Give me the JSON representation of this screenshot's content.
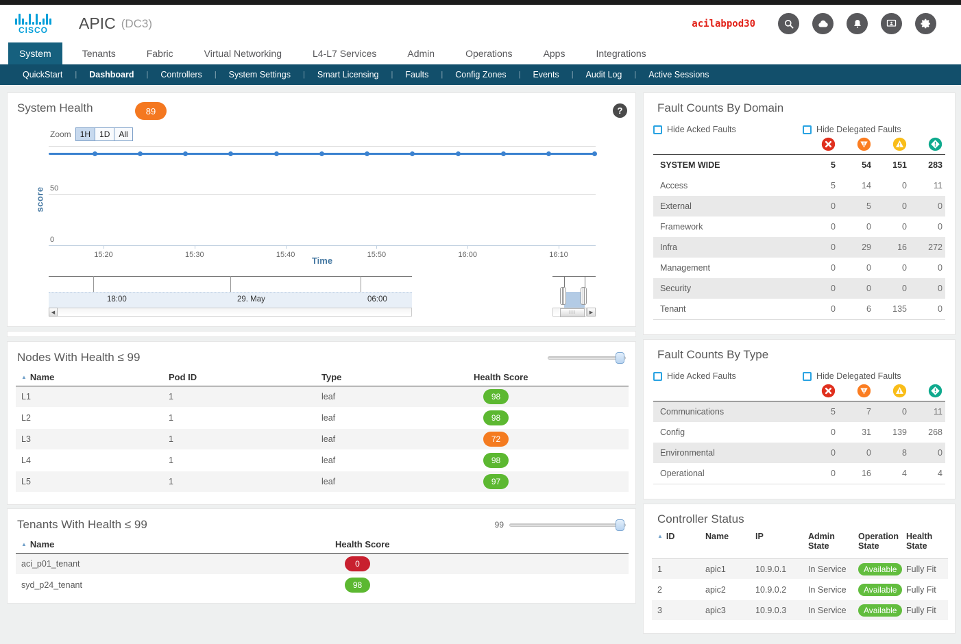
{
  "header": {
    "brand": "CISCO",
    "app_title": "APIC",
    "fabric_name": "(DC3)",
    "username": "acilabpod30",
    "icons": [
      "search-icon",
      "cloud-icon",
      "bell-icon",
      "session-icon",
      "gear-icon"
    ]
  },
  "nav": {
    "tabs": [
      {
        "label": "System",
        "active": true
      },
      {
        "label": "Tenants"
      },
      {
        "label": "Fabric"
      },
      {
        "label": "Virtual Networking"
      },
      {
        "label": "L4-L7 Services"
      },
      {
        "label": "Admin"
      },
      {
        "label": "Operations"
      },
      {
        "label": "Apps"
      },
      {
        "label": "Integrations"
      }
    ],
    "subnav": [
      {
        "label": "QuickStart"
      },
      {
        "label": "Dashboard",
        "active": true
      },
      {
        "label": "Controllers"
      },
      {
        "label": "System Settings"
      },
      {
        "label": "Smart Licensing"
      },
      {
        "label": "Faults"
      },
      {
        "label": "Config Zones"
      },
      {
        "label": "Events"
      },
      {
        "label": "Audit Log"
      },
      {
        "label": "Active Sessions"
      }
    ]
  },
  "system_health": {
    "title": "System Health",
    "score_badge": "89",
    "help_icon": "question-icon",
    "zoom_label": "Zoom",
    "zoom_buttons": [
      {
        "label": "1H",
        "active": true
      },
      {
        "label": "1D"
      },
      {
        "label": "All"
      }
    ],
    "chart_data": {
      "type": "line",
      "title": "System Health",
      "xlabel": "Time",
      "ylabel": "score",
      "ylim": [
        0,
        100
      ],
      "yticks": [
        0,
        50
      ],
      "xticks": [
        "15:20",
        "15:30",
        "15:40",
        "15:50",
        "16:00",
        "16:10"
      ],
      "series": [
        {
          "name": "score",
          "color": "#3b82d0",
          "values": [
            89,
            89,
            89,
            89,
            89,
            89,
            89,
            89,
            89,
            89,
            89,
            89
          ]
        }
      ],
      "legend": "off",
      "navigator": {
        "labels": [
          "18:00",
          "29. May",
          "06:00"
        ]
      }
    }
  },
  "fault_domain": {
    "title": "Fault Counts By Domain",
    "hide_acked_label": "Hide Acked Faults",
    "hide_delegated_label": "Hide Delegated Faults",
    "severity_icons": [
      "critical-icon",
      "major-icon",
      "minor-icon",
      "warning-icon"
    ],
    "rows": [
      {
        "label": "SYSTEM WIDE",
        "bold": true,
        "values": [
          5,
          54,
          151,
          283
        ]
      },
      {
        "label": "Access",
        "values": [
          5,
          14,
          0,
          11
        ]
      },
      {
        "label": "External",
        "shaded": true,
        "values": [
          0,
          5,
          0,
          0
        ]
      },
      {
        "label": "Framework",
        "values": [
          0,
          0,
          0,
          0
        ]
      },
      {
        "label": "Infra",
        "shaded": true,
        "values": [
          0,
          29,
          16,
          272
        ]
      },
      {
        "label": "Management",
        "values": [
          0,
          0,
          0,
          0
        ]
      },
      {
        "label": "Security",
        "shaded": true,
        "values": [
          0,
          0,
          0,
          0
        ]
      },
      {
        "label": "Tenant",
        "values": [
          0,
          6,
          135,
          0
        ]
      }
    ]
  },
  "fault_type": {
    "title": "Fault Counts By Type",
    "hide_acked_label": "Hide Acked Faults",
    "hide_delegated_label": "Hide Delegated Faults",
    "severity_icons": [
      "critical-icon",
      "major-icon",
      "minor-icon",
      "warning-icon"
    ],
    "rows": [
      {
        "label": "Communications",
        "shaded": true,
        "values": [
          5,
          7,
          0,
          11
        ]
      },
      {
        "label": "Config",
        "values": [
          0,
          31,
          139,
          268
        ]
      },
      {
        "label": "Environmental",
        "shaded": true,
        "values": [
          0,
          0,
          8,
          0
        ]
      },
      {
        "label": "Operational",
        "values": [
          0,
          16,
          4,
          4
        ]
      }
    ]
  },
  "nodes": {
    "title": "Nodes With Health ≤ 99",
    "columns": [
      "Name",
      "Pod ID",
      "Type",
      "Health Score"
    ],
    "rows": [
      {
        "name": "L1",
        "pod_id": "1",
        "type": "leaf",
        "health_score": 98,
        "score_color": "#5cb831",
        "shaded": true
      },
      {
        "name": "L2",
        "pod_id": "1",
        "type": "leaf",
        "health_score": 98,
        "score_color": "#5cb831"
      },
      {
        "name": "L3",
        "pod_id": "1",
        "type": "leaf",
        "health_score": 72,
        "score_color": "#f47b20",
        "shaded": true
      },
      {
        "name": "L4",
        "pod_id": "1",
        "type": "leaf",
        "health_score": 98,
        "score_color": "#5cb831"
      },
      {
        "name": "L5",
        "pod_id": "1",
        "type": "leaf",
        "health_score": 97,
        "score_color": "#5cb831",
        "shaded": true
      }
    ]
  },
  "tenants": {
    "title": "Tenants With Health ≤ 99",
    "slider_value": "99",
    "columns": [
      "Name",
      "Health Score"
    ],
    "rows": [
      {
        "name": "aci_p01_tenant",
        "health_score": 0,
        "score_color": "#c8202f",
        "shaded": true
      },
      {
        "name": "syd_p24_tenant",
        "health_score": 98,
        "score_color": "#5cb831"
      }
    ]
  },
  "controllers": {
    "title": "Controller Status",
    "columns": [
      "ID",
      "Name",
      "IP",
      "Admin State",
      "Operation State",
      "Health State"
    ],
    "rows": [
      {
        "id": "1",
        "name": "apic1",
        "ip": "10.9.0.1",
        "admin_state": "In Service",
        "operation_state": "Available",
        "health_state": "Fully Fit",
        "shaded": true
      },
      {
        "id": "2",
        "name": "apic2",
        "ip": "10.9.0.2",
        "admin_state": "In Service",
        "operation_state": "Available",
        "health_state": "Fully Fit"
      },
      {
        "id": "3",
        "name": "apic3",
        "ip": "10.9.0.3",
        "admin_state": "In Service",
        "operation_state": "Available",
        "health_state": "Fully Fit",
        "shaded": true
      }
    ]
  },
  "colors": {
    "nav_teal": "#16607e",
    "subnav_teal": "#124f6b",
    "brand_blue": "#049fd9",
    "username_red": "#e2231a",
    "accent_orange": "#f47820",
    "health_green": "#5cb831",
    "health_orange": "#f47b20",
    "health_red": "#c8202f",
    "available_green": "#62bd3e",
    "critical_red": "#e0301e",
    "major_orange": "#fb7d21",
    "minor_yellow": "#f9bd19",
    "warning_teal": "#0faa8e",
    "chart_blue": "#3b82d0"
  }
}
